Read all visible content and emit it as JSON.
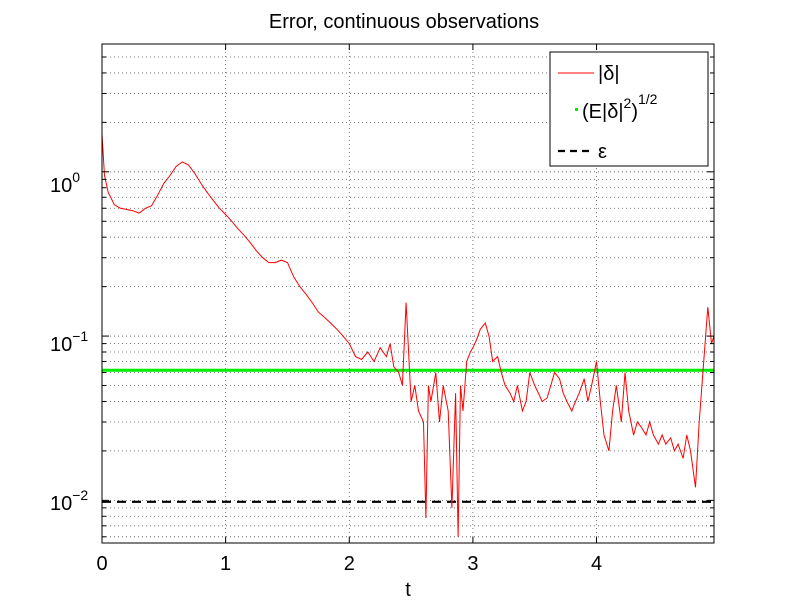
{
  "chart_data": {
    "type": "line",
    "title": "Error, continuous observations",
    "xlabel": "t",
    "ylabel": "",
    "xlim": [
      0,
      4.95
    ],
    "ylim": [
      0.0055,
      6
    ],
    "yscale": "log",
    "grid": "dotted",
    "legend_position": "top-right",
    "x_ticks": [
      "0",
      "1",
      "2",
      "3",
      "4"
    ],
    "y_ticks": [
      {
        "base": "10",
        "exp": "0"
      },
      {
        "base": "10",
        "exp": "−1"
      },
      {
        "base": "10",
        "exp": "−2"
      }
    ],
    "series": [
      {
        "name": "|δ|",
        "color": "#ff0000",
        "style": "line",
        "x": [
          0,
          0.02,
          0.05,
          0.1,
          0.15,
          0.2,
          0.25,
          0.3,
          0.35,
          0.4,
          0.45,
          0.5,
          0.55,
          0.6,
          0.65,
          0.7,
          0.75,
          0.8,
          0.85,
          0.9,
          0.95,
          1.0,
          1.05,
          1.1,
          1.15,
          1.2,
          1.25,
          1.3,
          1.35,
          1.4,
          1.45,
          1.5,
          1.55,
          1.6,
          1.65,
          1.7,
          1.75,
          1.8,
          1.85,
          1.9,
          1.95,
          2.0,
          2.05,
          2.1,
          2.15,
          2.2,
          2.25,
          2.3,
          2.33,
          2.36,
          2.4,
          2.43,
          2.46,
          2.5,
          2.53,
          2.56,
          2.6,
          2.62,
          2.64,
          2.66,
          2.7,
          2.73,
          2.76,
          2.8,
          2.83,
          2.86,
          2.88,
          2.9,
          2.92,
          2.95,
          2.98,
          3.0,
          3.03,
          3.06,
          3.1,
          3.13,
          3.16,
          3.2,
          3.23,
          3.26,
          3.3,
          3.33,
          3.36,
          3.4,
          3.43,
          3.46,
          3.5,
          3.53,
          3.56,
          3.6,
          3.63,
          3.66,
          3.7,
          3.73,
          3.76,
          3.8,
          3.83,
          3.86,
          3.9,
          3.93,
          3.96,
          4.0,
          4.03,
          4.06,
          4.1,
          4.13,
          4.16,
          4.2,
          4.23,
          4.26,
          4.3,
          4.33,
          4.36,
          4.4,
          4.43,
          4.46,
          4.5,
          4.53,
          4.56,
          4.6,
          4.63,
          4.66,
          4.7,
          4.73,
          4.76,
          4.8,
          4.83,
          4.86,
          4.9,
          4.93,
          4.95
        ],
        "y": [
          1.7,
          0.95,
          0.75,
          0.63,
          0.6,
          0.59,
          0.58,
          0.56,
          0.6,
          0.62,
          0.72,
          0.85,
          0.95,
          1.08,
          1.15,
          1.1,
          0.98,
          0.85,
          0.75,
          0.67,
          0.6,
          0.55,
          0.5,
          0.45,
          0.41,
          0.37,
          0.33,
          0.3,
          0.28,
          0.28,
          0.29,
          0.28,
          0.23,
          0.2,
          0.18,
          0.16,
          0.14,
          0.13,
          0.12,
          0.11,
          0.1,
          0.09,
          0.075,
          0.072,
          0.08,
          0.07,
          0.085,
          0.075,
          0.09,
          0.065,
          0.06,
          0.05,
          0.16,
          0.04,
          0.05,
          0.035,
          0.03,
          0.0078,
          0.05,
          0.04,
          0.06,
          0.03,
          0.05,
          0.035,
          0.009,
          0.045,
          0.006,
          0.05,
          0.035,
          0.07,
          0.08,
          0.085,
          0.095,
          0.11,
          0.12,
          0.1,
          0.07,
          0.075,
          0.06,
          0.05,
          0.045,
          0.04,
          0.05,
          0.035,
          0.04,
          0.06,
          0.05,
          0.045,
          0.04,
          0.042,
          0.05,
          0.06,
          0.055,
          0.045,
          0.04,
          0.035,
          0.04,
          0.045,
          0.055,
          0.04,
          0.05,
          0.07,
          0.04,
          0.025,
          0.02,
          0.035,
          0.05,
          0.03,
          0.06,
          0.035,
          0.025,
          0.03,
          0.028,
          0.025,
          0.03,
          0.025,
          0.022,
          0.025,
          0.022,
          0.024,
          0.02,
          0.022,
          0.018,
          0.025,
          0.02,
          0.012,
          0.03,
          0.06,
          0.15,
          0.09,
          0.1
        ]
      },
      {
        "name": "(E|δ|²)¹ᐟ²",
        "legend_main": "(E|δ|",
        "legend_sup1": "2",
        "legend_mid": ")",
        "legend_sup2": "1/2",
        "color": "#00ee00",
        "style": "line",
        "constant": 0.062
      },
      {
        "name": "ε",
        "color": "#000000",
        "style": "dashed",
        "constant": 0.0098
      }
    ]
  }
}
